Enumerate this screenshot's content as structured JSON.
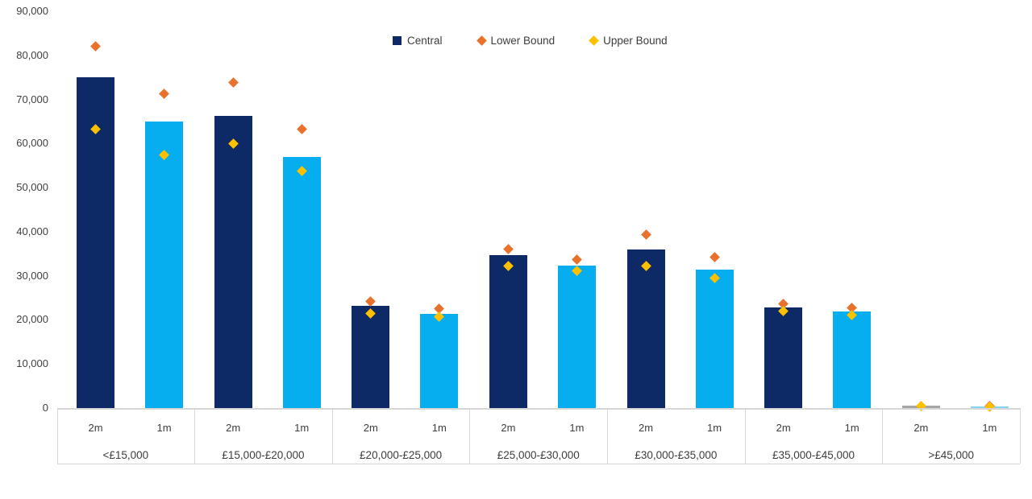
{
  "chart_data": {
    "type": "bar",
    "title": "",
    "xlabel": "",
    "ylabel": "",
    "ylim": [
      0,
      90000
    ],
    "ytick_interval": 10000,
    "ytick_labels": [
      "90,000",
      "80,000",
      "70,000",
      "60,000",
      "50,000",
      "40,000",
      "30,000",
      "20,000",
      "10,000",
      "0"
    ],
    "grid": false,
    "legend_position": "top-center",
    "legend": [
      {
        "label": "Central",
        "marker": "square",
        "color": "#0E2A66"
      },
      {
        "label": "Lower Bound",
        "marker": "diamond",
        "color": "#E8722C"
      },
      {
        "label": "Upper Bound",
        "marker": "diamond",
        "color": "#FFC000"
      }
    ],
    "series_colors": {
      "central_2m": "#0E2A66",
      "central_1m": "#06AEEF",
      "lower_bound": "#E8722C",
      "upper_bound": "#FFC000"
    },
    "bar_sublabels": [
      "2m",
      "1m"
    ],
    "groups": [
      {
        "category": "<£15,000",
        "bars": [
          {
            "label": "2m",
            "central": 75000,
            "lower_bound": 82000,
            "upper_bound": 63200
          },
          {
            "label": "1m",
            "central": 65000,
            "lower_bound": 71200,
            "upper_bound": 57400
          }
        ]
      },
      {
        "category": "£15,000-£20,000",
        "bars": [
          {
            "label": "2m",
            "central": 66200,
            "lower_bound": 73900,
            "upper_bound": 60000
          },
          {
            "label": "1m",
            "central": 56900,
            "lower_bound": 63300,
            "upper_bound": 53800
          }
        ]
      },
      {
        "category": "£20,000-£25,000",
        "bars": [
          {
            "label": "2m",
            "central": 23200,
            "lower_bound": 24200,
            "upper_bound": 21400
          },
          {
            "label": "1m",
            "central": 21300,
            "lower_bound": 22600,
            "upper_bound": 20800
          }
        ]
      },
      {
        "category": "£25,000-£30,000",
        "bars": [
          {
            "label": "2m",
            "central": 34700,
            "lower_bound": 36000,
            "upper_bound": 32300
          },
          {
            "label": "1m",
            "central": 32300,
            "lower_bound": 33600,
            "upper_bound": 31100
          }
        ]
      },
      {
        "category": "£30,000-£35,000",
        "bars": [
          {
            "label": "2m",
            "central": 36000,
            "lower_bound": 39300,
            "upper_bound": 32200
          },
          {
            "label": "1m",
            "central": 31400,
            "lower_bound": 34200,
            "upper_bound": 29400
          }
        ]
      },
      {
        "category": "£35,000-£45,000",
        "bars": [
          {
            "label": "2m",
            "central": 22900,
            "lower_bound": 23600,
            "upper_bound": 22000
          },
          {
            "label": "1m",
            "central": 21900,
            "lower_bound": 22800,
            "upper_bound": 21100
          }
        ]
      },
      {
        "category": ">£45,000",
        "bars": [
          {
            "label": "2m",
            "central": 500,
            "lower_bound": 500,
            "upper_bound": 400,
            "bar_color_override": "#A6A6A6"
          },
          {
            "label": "1m",
            "central": 400,
            "lower_bound": 400,
            "upper_bound": 300,
            "bar_color_override": "#86D5F5"
          }
        ]
      }
    ]
  }
}
